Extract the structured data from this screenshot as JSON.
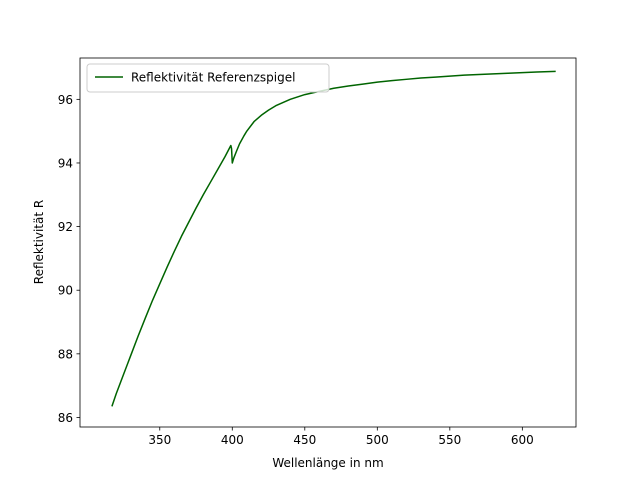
{
  "chart_data": {
    "type": "line",
    "title": "",
    "xlabel": "Wellenlänge in nm",
    "ylabel": "Reflektivität R",
    "xlim": [
      295,
      637
    ],
    "ylim": [
      85.7,
      97.3
    ],
    "xticks": [
      350,
      400,
      450,
      500,
      550,
      600
    ],
    "yticks": [
      86,
      88,
      90,
      92,
      94,
      96
    ],
    "grid": false,
    "legend": {
      "placement": "top-left"
    },
    "series": [
      {
        "name": "Reflektivität Referenzspigel",
        "color": "#006400",
        "x": [
          317,
          320,
          325,
          330,
          335,
          340,
          345,
          350,
          355,
          360,
          365,
          370,
          375,
          380,
          385,
          390,
          395,
          399,
          399.5,
          400,
          401,
          403,
          405,
          408,
          410,
          415,
          420,
          425,
          430,
          440,
          450,
          460,
          470,
          480,
          490,
          500,
          510,
          520,
          530,
          540,
          550,
          560,
          570,
          580,
          590,
          600,
          610,
          623
        ],
        "y": [
          86.35,
          86.75,
          87.35,
          87.95,
          88.55,
          89.12,
          89.68,
          90.2,
          90.72,
          91.22,
          91.7,
          92.14,
          92.58,
          93.0,
          93.4,
          93.8,
          94.2,
          94.55,
          94.45,
          94.0,
          94.15,
          94.38,
          94.6,
          94.85,
          95.0,
          95.3,
          95.5,
          95.66,
          95.8,
          96.0,
          96.15,
          96.25,
          96.35,
          96.42,
          96.48,
          96.54,
          96.59,
          96.63,
          96.67,
          96.7,
          96.73,
          96.76,
          96.78,
          96.8,
          96.82,
          96.84,
          96.86,
          96.88
        ]
      }
    ]
  }
}
